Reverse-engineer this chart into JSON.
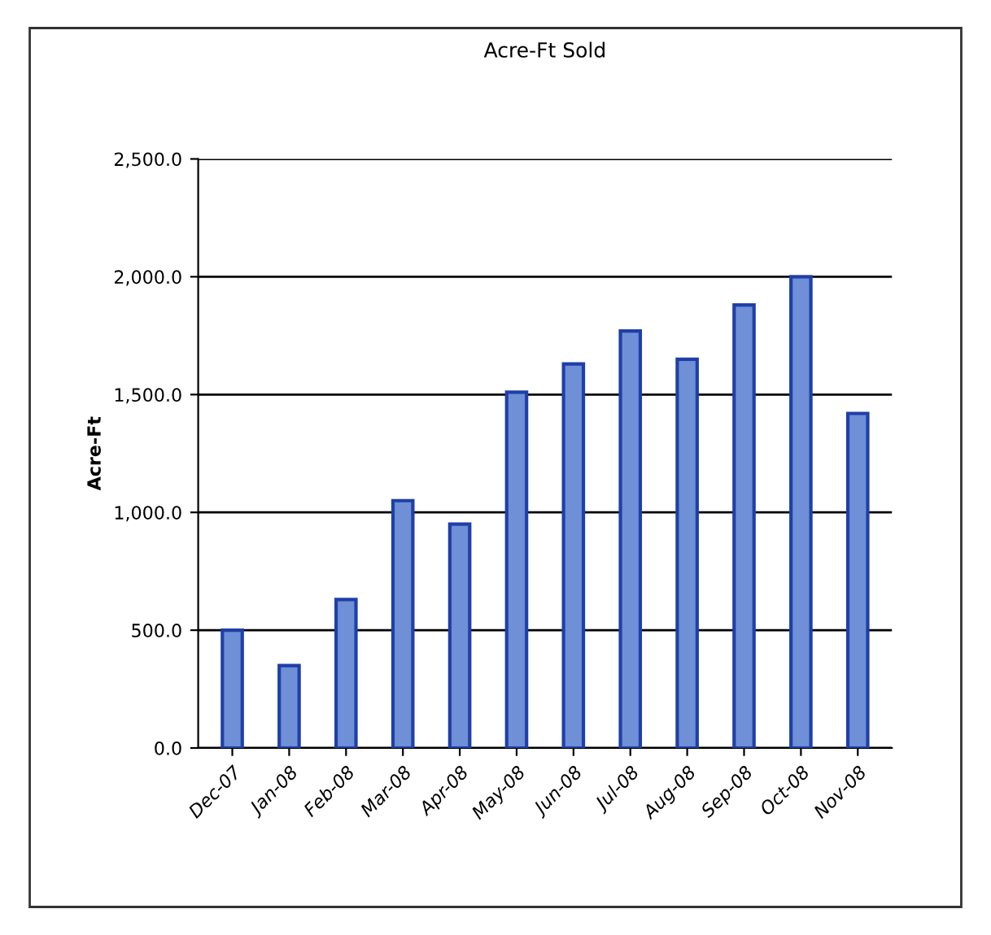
{
  "chart_data": {
    "type": "bar",
    "title": "Acre-Ft Sold",
    "ylabel": "Acre-Ft",
    "categories": [
      "Dec-07",
      "Jan-08",
      "Feb-08",
      "Mar-08",
      "Apr-08",
      "May-08",
      "Jun-08",
      "Jul-08",
      "Aug-08",
      "Sep-08",
      "Oct-08",
      "Nov-08"
    ],
    "values": [
      500,
      350,
      630,
      1050,
      950,
      1510,
      1630,
      1770,
      1650,
      1880,
      2000,
      1420
    ],
    "color": "#6f8fd6",
    "ylim": [
      0,
      2500
    ],
    "yticks": [
      {
        "value": 0,
        "label": "0.0"
      },
      {
        "value": 500,
        "label": "500.0"
      },
      {
        "value": 1000,
        "label": "1,000.0"
      },
      {
        "value": 1500,
        "label": "1,500.0"
      },
      {
        "value": 2000,
        "label": "2,000.0"
      },
      {
        "value": 2500,
        "label": "2,500.0"
      }
    ],
    "grid": "y",
    "legend": false
  }
}
